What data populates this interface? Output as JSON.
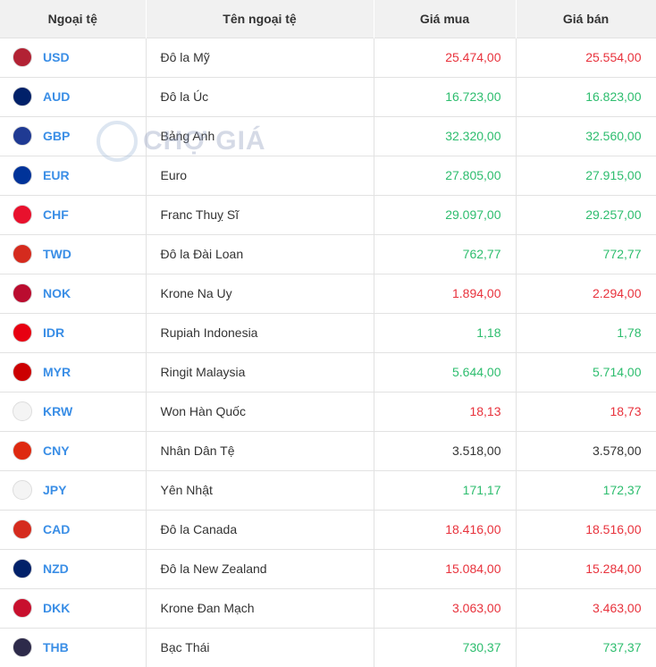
{
  "headers": [
    "Ngoại tệ",
    "Tên ngoại tệ",
    "Giá mua",
    "Giá bán"
  ],
  "colors": {
    "up": "#2dbd6e",
    "down": "#e8323c",
    "same": "#333333",
    "code": "#3a8ee6"
  },
  "watermark": "CHỢ GIÁ",
  "rows": [
    {
      "code": "USD",
      "name": "Đô la Mỹ",
      "buy": "25.474,00",
      "sell": "25.554,00",
      "trend": "down",
      "flag": "#b22234"
    },
    {
      "code": "AUD",
      "name": "Đô la Úc",
      "buy": "16.723,00",
      "sell": "16.823,00",
      "trend": "up",
      "flag": "#012169"
    },
    {
      "code": "GBP",
      "name": "Bảng Anh",
      "buy": "32.320,00",
      "sell": "32.560,00",
      "trend": "up",
      "flag": "#1f3a93"
    },
    {
      "code": "EUR",
      "name": "Euro",
      "buy": "27.805,00",
      "sell": "27.915,00",
      "trend": "up",
      "flag": "#003399"
    },
    {
      "code": "CHF",
      "name": "Franc Thuỵ Sĩ",
      "buy": "29.097,00",
      "sell": "29.257,00",
      "trend": "up",
      "flag": "#e8112d"
    },
    {
      "code": "TWD",
      "name": "Đô la Đài Loan",
      "buy": "762,77",
      "sell": "772,77",
      "trend": "up",
      "flag": "#d52b1e"
    },
    {
      "code": "NOK",
      "name": "Krone Na Uy",
      "buy": "1.894,00",
      "sell": "2.294,00",
      "trend": "down",
      "flag": "#ba0c2f"
    },
    {
      "code": "IDR",
      "name": "Rupiah Indonesia",
      "buy": "1,18",
      "sell": "1,78",
      "trend": "up",
      "flag": "#e70011"
    },
    {
      "code": "MYR",
      "name": "Ringit Malaysia",
      "buy": "5.644,00",
      "sell": "5.714,00",
      "trend": "up",
      "flag": "#cc0001"
    },
    {
      "code": "KRW",
      "name": "Won Hàn Quốc",
      "buy": "18,13",
      "sell": "18,73",
      "trend": "down",
      "flag": "#f4f4f4"
    },
    {
      "code": "CNY",
      "name": "Nhân Dân Tệ",
      "buy": "3.518,00",
      "sell": "3.578,00",
      "trend": "same",
      "flag": "#de2910"
    },
    {
      "code": "JPY",
      "name": "Yên Nhật",
      "buy": "171,17",
      "sell": "172,37",
      "trend": "up",
      "flag": "#f4f4f4"
    },
    {
      "code": "CAD",
      "name": "Đô la Canada",
      "buy": "18.416,00",
      "sell": "18.516,00",
      "trend": "down",
      "flag": "#d52b1e"
    },
    {
      "code": "NZD",
      "name": "Đô la New Zealand",
      "buy": "15.084,00",
      "sell": "15.284,00",
      "trend": "down",
      "flag": "#012169"
    },
    {
      "code": "DKK",
      "name": "Krone Đan Mạch",
      "buy": "3.063,00",
      "sell": "3.463,00",
      "trend": "down",
      "flag": "#c8102e"
    },
    {
      "code": "THB",
      "name": "Bạc Thái",
      "buy": "730,37",
      "sell": "737,37",
      "trend": "up",
      "flag": "#2d2a4a"
    }
  ]
}
